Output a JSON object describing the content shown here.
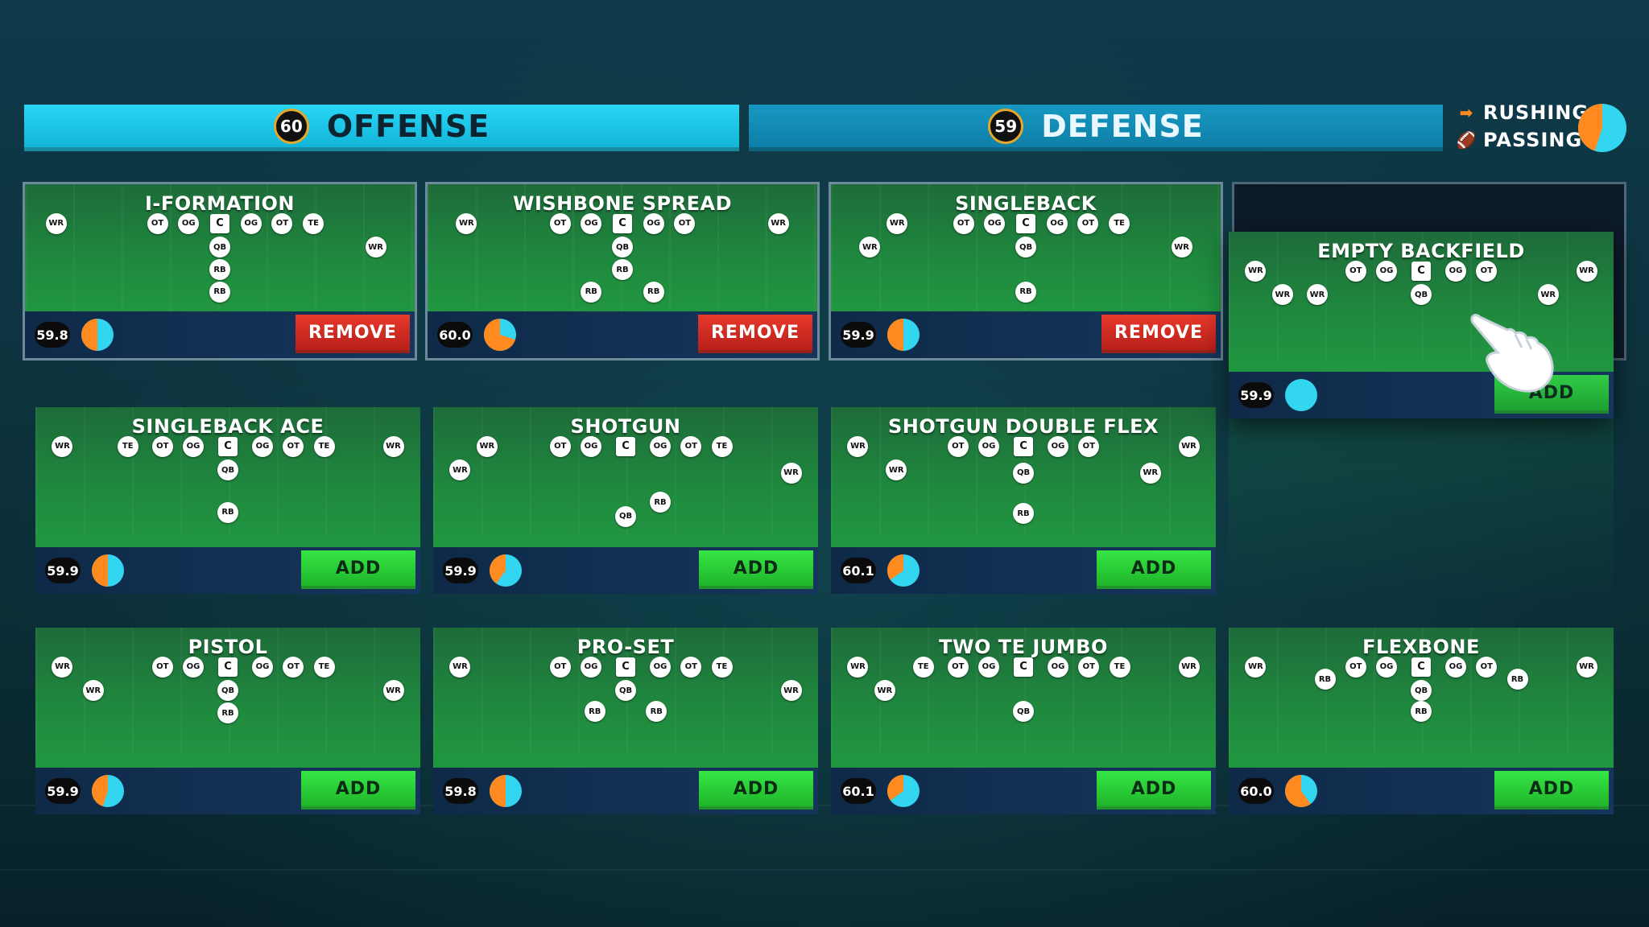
{
  "tabs": {
    "offense": {
      "label": "OFFENSE",
      "rating": "60"
    },
    "defense": {
      "label": "DEFENSE",
      "rating": "59"
    }
  },
  "legend": {
    "rushing": "RUSHING",
    "passing": "PASSING",
    "colors": {
      "rushing": "#ff8a1f",
      "passing": "#33d6f0"
    },
    "rushing_fraction": 0.45
  },
  "formations": [
    {
      "id": "i-formation",
      "title": "I-FORMATION",
      "rating": "59.8",
      "rush_fraction": 0.5,
      "button": "REMOVE",
      "selected": true,
      "players": [
        [
          "WR",
          0.08,
          0.28
        ],
        [
          "OT",
          0.34,
          0.28
        ],
        [
          "OG",
          0.42,
          0.28
        ],
        [
          "C",
          0.5,
          0.28
        ],
        [
          "OG",
          0.58,
          0.28
        ],
        [
          "OT",
          0.66,
          0.28
        ],
        [
          "TE",
          0.74,
          0.28
        ],
        [
          "WR",
          0.9,
          0.45
        ],
        [
          "QB",
          0.5,
          0.45
        ],
        [
          "RB",
          0.5,
          0.61
        ],
        [
          "RB",
          0.5,
          0.77
        ]
      ]
    },
    {
      "id": "wishbone-spread",
      "title": "WISHBONE SPREAD",
      "rating": "60.0",
      "rush_fraction": 0.7,
      "button": "REMOVE",
      "selected": true,
      "players": [
        [
          "WR",
          0.1,
          0.28
        ],
        [
          "OT",
          0.34,
          0.28
        ],
        [
          "OG",
          0.42,
          0.28
        ],
        [
          "C",
          0.5,
          0.28
        ],
        [
          "OG",
          0.58,
          0.28
        ],
        [
          "OT",
          0.66,
          0.28
        ],
        [
          "WR",
          0.9,
          0.28
        ],
        [
          "QB",
          0.5,
          0.45
        ],
        [
          "RB",
          0.5,
          0.61
        ],
        [
          "RB",
          0.42,
          0.77
        ],
        [
          "RB",
          0.58,
          0.77
        ]
      ]
    },
    {
      "id": "singleback",
      "title": "SINGLEBACK",
      "rating": "59.9",
      "rush_fraction": 0.5,
      "button": "REMOVE",
      "selected": true,
      "players": [
        [
          "WR",
          0.17,
          0.28
        ],
        [
          "WR",
          0.1,
          0.45
        ],
        [
          "OT",
          0.34,
          0.28
        ],
        [
          "OG",
          0.42,
          0.28
        ],
        [
          "C",
          0.5,
          0.28
        ],
        [
          "OG",
          0.58,
          0.28
        ],
        [
          "OT",
          0.66,
          0.28
        ],
        [
          "TE",
          0.74,
          0.28
        ],
        [
          "WR",
          0.9,
          0.45
        ],
        [
          "QB",
          0.5,
          0.45
        ],
        [
          "RB",
          0.5,
          0.77
        ]
      ]
    },
    {
      "id": "singleback-ace",
      "title": "SINGLEBACK ACE",
      "rating": "59.9",
      "rush_fraction": 0.5,
      "button": "ADD",
      "selected": false,
      "players": [
        [
          "WR",
          0.07,
          0.28
        ],
        [
          "TE",
          0.24,
          0.28
        ],
        [
          "OT",
          0.33,
          0.28
        ],
        [
          "OG",
          0.41,
          0.28
        ],
        [
          "C",
          0.5,
          0.28
        ],
        [
          "OG",
          0.59,
          0.28
        ],
        [
          "OT",
          0.67,
          0.28
        ],
        [
          "TE",
          0.75,
          0.28
        ],
        [
          "WR",
          0.93,
          0.28
        ],
        [
          "QB",
          0.5,
          0.45
        ],
        [
          "RB",
          0.5,
          0.75
        ]
      ]
    },
    {
      "id": "shotgun",
      "title": "SHOTGUN",
      "rating": "59.9",
      "rush_fraction": 0.4,
      "button": "ADD",
      "selected": false,
      "players": [
        [
          "WR",
          0.14,
          0.28
        ],
        [
          "WR",
          0.07,
          0.45
        ],
        [
          "OT",
          0.33,
          0.28
        ],
        [
          "OG",
          0.41,
          0.28
        ],
        [
          "C",
          0.5,
          0.28
        ],
        [
          "OG",
          0.59,
          0.28
        ],
        [
          "OT",
          0.67,
          0.28
        ],
        [
          "TE",
          0.75,
          0.28
        ],
        [
          "WR",
          0.93,
          0.47
        ],
        [
          "QB",
          0.5,
          0.78
        ],
        [
          "RB",
          0.59,
          0.68
        ]
      ]
    },
    {
      "id": "shotgun-double-flex",
      "title": "SHOTGUN DOUBLE FLEX",
      "rating": "60.1",
      "rush_fraction": 0.35,
      "button": "ADD",
      "selected": false,
      "players": [
        [
          "WR",
          0.07,
          0.28
        ],
        [
          "WR",
          0.17,
          0.45
        ],
        [
          "OT",
          0.33,
          0.28
        ],
        [
          "OG",
          0.41,
          0.28
        ],
        [
          "C",
          0.5,
          0.28
        ],
        [
          "OG",
          0.59,
          0.28
        ],
        [
          "OT",
          0.67,
          0.28
        ],
        [
          "WR",
          0.93,
          0.28
        ],
        [
          "WR",
          0.83,
          0.47
        ],
        [
          "QB",
          0.5,
          0.47
        ],
        [
          "RB",
          0.5,
          0.76
        ]
      ]
    },
    {
      "id": "pistol",
      "title": "PISTOL",
      "rating": "59.9",
      "rush_fraction": 0.45,
      "button": "ADD",
      "selected": false,
      "players": [
        [
          "WR",
          0.07,
          0.28
        ],
        [
          "WR",
          0.15,
          0.45
        ],
        [
          "OT",
          0.33,
          0.28
        ],
        [
          "OG",
          0.41,
          0.28
        ],
        [
          "C",
          0.5,
          0.28
        ],
        [
          "OG",
          0.59,
          0.28
        ],
        [
          "OT",
          0.67,
          0.28
        ],
        [
          "TE",
          0.75,
          0.28
        ],
        [
          "WR",
          0.93,
          0.45
        ],
        [
          "QB",
          0.5,
          0.45
        ],
        [
          "RB",
          0.5,
          0.61
        ]
      ]
    },
    {
      "id": "pro-set",
      "title": "PRO-SET",
      "rating": "59.8",
      "rush_fraction": 0.5,
      "button": "ADD",
      "selected": false,
      "players": [
        [
          "WR",
          0.07,
          0.28
        ],
        [
          "OT",
          0.33,
          0.28
        ],
        [
          "OG",
          0.41,
          0.28
        ],
        [
          "C",
          0.5,
          0.28
        ],
        [
          "OG",
          0.59,
          0.28
        ],
        [
          "OT",
          0.67,
          0.28
        ],
        [
          "TE",
          0.75,
          0.28
        ],
        [
          "WR",
          0.93,
          0.45
        ],
        [
          "QB",
          0.5,
          0.45
        ],
        [
          "RB",
          0.42,
          0.6
        ],
        [
          "RB",
          0.58,
          0.6
        ]
      ]
    },
    {
      "id": "two-te-jumbo",
      "title": "TWO TE JUMBO",
      "rating": "60.1",
      "rush_fraction": 0.35,
      "button": "ADD",
      "selected": false,
      "players": [
        [
          "WR",
          0.07,
          0.28
        ],
        [
          "WR",
          0.14,
          0.45
        ],
        [
          "TE",
          0.24,
          0.28
        ],
        [
          "OT",
          0.33,
          0.28
        ],
        [
          "OG",
          0.41,
          0.28
        ],
        [
          "C",
          0.5,
          0.28
        ],
        [
          "OG",
          0.59,
          0.28
        ],
        [
          "OT",
          0.67,
          0.28
        ],
        [
          "TE",
          0.75,
          0.28
        ],
        [
          "WR",
          0.93,
          0.28
        ],
        [
          "QB",
          0.5,
          0.6
        ]
      ]
    },
    {
      "id": "flexbone",
      "title": "FLEXBONE",
      "rating": "60.0",
      "rush_fraction": 0.6,
      "button": "ADD",
      "selected": false,
      "players": [
        [
          "WR",
          0.07,
          0.28
        ],
        [
          "RB",
          0.25,
          0.37
        ],
        [
          "OT",
          0.33,
          0.28
        ],
        [
          "OG",
          0.41,
          0.28
        ],
        [
          "C",
          0.5,
          0.28
        ],
        [
          "OG",
          0.59,
          0.28
        ],
        [
          "OT",
          0.67,
          0.28
        ],
        [
          "RB",
          0.75,
          0.37
        ],
        [
          "WR",
          0.93,
          0.28
        ],
        [
          "QB",
          0.5,
          0.45
        ],
        [
          "RB",
          0.5,
          0.6
        ]
      ]
    },
    {
      "id": "empty-backfield",
      "title": "EMPTY BACKFIELD",
      "rating": "59.9",
      "rush_fraction": 0.0,
      "button": "ADD",
      "selected": false,
      "dragging": true,
      "players": [
        [
          "WR",
          0.07,
          0.28
        ],
        [
          "WR",
          0.14,
          0.45
        ],
        [
          "WR",
          0.23,
          0.45
        ],
        [
          "OT",
          0.33,
          0.28
        ],
        [
          "OG",
          0.41,
          0.28
        ],
        [
          "C",
          0.5,
          0.28
        ],
        [
          "OG",
          0.59,
          0.28
        ],
        [
          "OT",
          0.67,
          0.28
        ],
        [
          "WR",
          0.93,
          0.28
        ],
        [
          "WR",
          0.83,
          0.45
        ],
        [
          "QB",
          0.5,
          0.45
        ]
      ]
    }
  ]
}
